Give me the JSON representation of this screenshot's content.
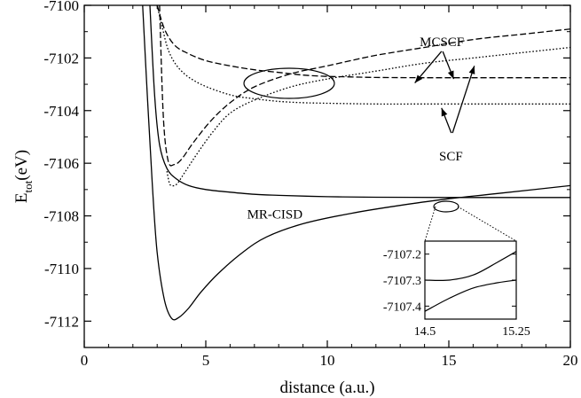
{
  "chart_data": {
    "type": "line",
    "xlabel": "distance (a.u.)",
    "ylabel_main": "E",
    "ylabel_sub": "tot",
    "ylabel_unit": "(eV)",
    "xlim": [
      0,
      20
    ],
    "ylim": [
      -7113,
      -7100
    ],
    "xticks": [
      0,
      5,
      10,
      15,
      20
    ],
    "yticks": [
      -7112,
      -7110,
      -7108,
      -7106,
      -7104,
      -7102,
      -7100
    ],
    "grid": false,
    "series": [
      {
        "style": "solid",
        "x": [
          2.4,
          2.6,
          2.8,
          3.0,
          3.3,
          3.6,
          3.9,
          4.3,
          4.8,
          5.5,
          6.5,
          7.5,
          9,
          11,
          13,
          15,
          17,
          20
        ],
        "y": [
          -7100,
          -7103.5,
          -7106.8,
          -7109.4,
          -7111.2,
          -7111.9,
          -7111.85,
          -7111.5,
          -7110.9,
          -7110.2,
          -7109.4,
          -7108.8,
          -7108.3,
          -7107.9,
          -7107.6,
          -7107.35,
          -7107.15,
          -7106.85
        ]
      },
      {
        "style": "solid",
        "x": [
          2.7,
          2.9,
          3.1,
          3.4,
          3.8,
          4.3,
          5,
          6,
          7,
          8,
          10,
          12,
          15,
          17,
          20
        ],
        "y": [
          -7100,
          -7103.5,
          -7105.3,
          -7106.2,
          -7106.6,
          -7106.85,
          -7107.0,
          -7107.1,
          -7107.18,
          -7107.22,
          -7107.27,
          -7107.29,
          -7107.3,
          -7107.3,
          -7107.3
        ]
      },
      {
        "style": "dashed",
        "x": [
          3.1,
          3.25,
          3.45,
          3.7,
          4.0,
          4.5,
          5.2,
          6,
          7,
          8.5,
          10,
          12,
          14,
          16,
          18,
          20
        ],
        "y": [
          -7100,
          -7104.2,
          -7105.9,
          -7106.05,
          -7105.85,
          -7105.2,
          -7104.4,
          -7103.7,
          -7103.1,
          -7102.6,
          -7102.3,
          -7101.9,
          -7101.6,
          -7101.3,
          -7101.1,
          -7100.9
        ]
      },
      {
        "style": "dashed",
        "x": [
          3.0,
          3.3,
          3.7,
          4.2,
          5,
          6,
          7,
          8,
          9,
          10,
          11,
          12,
          14,
          17,
          20
        ],
        "y": [
          -7100,
          -7100.9,
          -7101.5,
          -7101.8,
          -7102.1,
          -7102.3,
          -7102.45,
          -7102.55,
          -7102.65,
          -7102.7,
          -7102.72,
          -7102.74,
          -7102.75,
          -7102.75,
          -7102.75
        ]
      },
      {
        "style": "dotted",
        "x": [
          3.4,
          3.5,
          3.6,
          3.8,
          4.1,
          4.6,
          5.3,
          6,
          7,
          8.5,
          10,
          12,
          14,
          16,
          18,
          20
        ],
        "y": [
          -7106.3,
          -7106.75,
          -7106.85,
          -7106.8,
          -7106.4,
          -7105.7,
          -7104.8,
          -7104.1,
          -7103.6,
          -7103.1,
          -7102.8,
          -7102.5,
          -7102.2,
          -7102.0,
          -7101.8,
          -7101.6
        ]
      },
      {
        "style": "dotted",
        "x": [
          3.0,
          3.2,
          3.5,
          4.0,
          4.8,
          6,
          7,
          8,
          9,
          10,
          12,
          14,
          17,
          20
        ],
        "y": [
          -7100,
          -7100.8,
          -7101.8,
          -7102.5,
          -7103.0,
          -7103.4,
          -7103.55,
          -7103.65,
          -7103.7,
          -7103.72,
          -7103.75,
          -7103.75,
          -7103.75,
          -7103.75
        ]
      }
    ],
    "annotations": [
      {
        "text": "MCSCF",
        "x": 13.8,
        "y": -7101.55
      },
      {
        "text": "SCF",
        "x": 14.6,
        "y": -7105.9
      },
      {
        "text": "MR-CISD",
        "x": 6.7,
        "y": -7108.1
      }
    ],
    "inset": {
      "xlim": [
        14.5,
        15.25
      ],
      "ylim": [
        -7107.45,
        -7107.15
      ],
      "xticks": [
        "14.5",
        "15.25"
      ],
      "yticks": [
        "-7107.2",
        "-7107.3",
        "-7107.4"
      ],
      "curves": [
        {
          "x": [
            14.5,
            14.7,
            14.9,
            15.1,
            15.25
          ],
          "y": [
            -7107.3,
            -7107.3,
            -7107.28,
            -7107.23,
            -7107.19
          ]
        },
        {
          "x": [
            14.5,
            14.7,
            14.9,
            15.1,
            15.25
          ],
          "y": [
            -7107.42,
            -7107.37,
            -7107.33,
            -7107.31,
            -7107.3
          ]
        }
      ]
    }
  }
}
